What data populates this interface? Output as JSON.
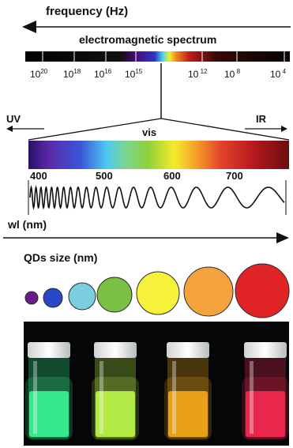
{
  "frequency_axis": {
    "label": "frequency (Hz)",
    "spectrum_label": "electromagnetic spectrum",
    "tick_labels": [
      {
        "base": "10",
        "exp": "20"
      },
      {
        "base": "10",
        "exp": "18"
      },
      {
        "base": "10",
        "exp": "16"
      },
      {
        "base": "10",
        "exp": "15"
      },
      {
        "base": "10",
        "exp": " 12"
      },
      {
        "base": "10",
        "exp": " 8"
      },
      {
        "base": "10",
        "exp": " 4"
      }
    ]
  },
  "visible_region": {
    "uv_label": "UV",
    "ir_label": "IR",
    "vis_label": "vis",
    "nm_ticks": [
      "400",
      "500",
      "600",
      "700"
    ],
    "wavelength_label": "wl (nm)"
  },
  "quantum_dots": {
    "label": "QDs size (nm)",
    "dots": [
      {
        "color": "#6a1d8a"
      },
      {
        "color": "#2a47c9"
      },
      {
        "color": "#7ccde0"
      },
      {
        "color": "#7bc043"
      },
      {
        "color": "#f7f23a"
      },
      {
        "color": "#f4a23c"
      },
      {
        "color": "#e02325"
      }
    ]
  },
  "vials": [
    {
      "glow": "#3bff9a"
    },
    {
      "glow": "#c4ff4a"
    },
    {
      "glow": "#ffb21a"
    },
    {
      "glow": "#ff2a55"
    }
  ]
}
